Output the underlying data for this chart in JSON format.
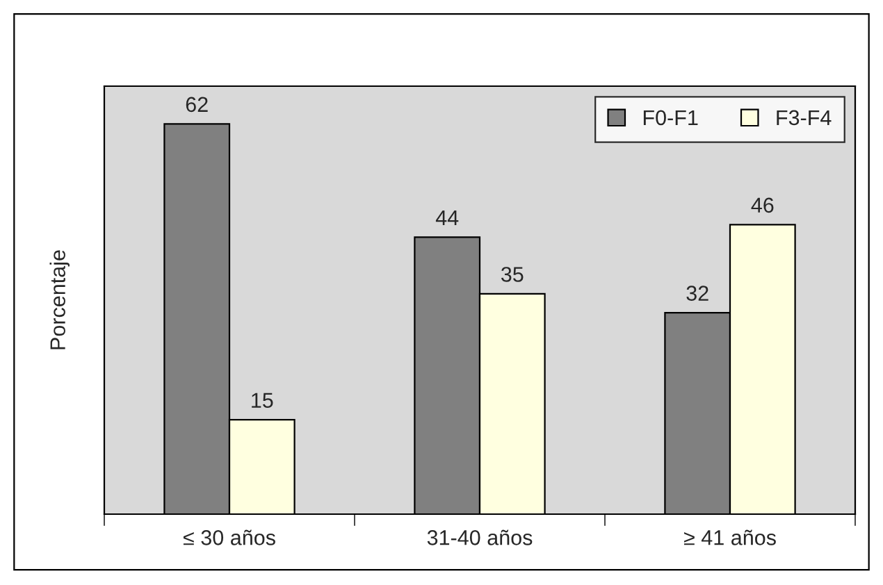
{
  "chart_data": {
    "type": "bar",
    "ylabel": "Porcentaje",
    "categories": [
      "≤ 30 años",
      "31-40 años",
      "≥ 41 años"
    ],
    "series": [
      {
        "name": "F0-F1",
        "color": "#808080",
        "values": [
          62,
          44,
          32
        ]
      },
      {
        "name": "F3-F4",
        "color": "#ffffe0",
        "values": [
          15,
          35,
          46
        ]
      }
    ],
    "ylim": [
      0,
      68
    ],
    "tick_labels": "x",
    "data_labels": true,
    "legend": "top right",
    "grid": false
  }
}
